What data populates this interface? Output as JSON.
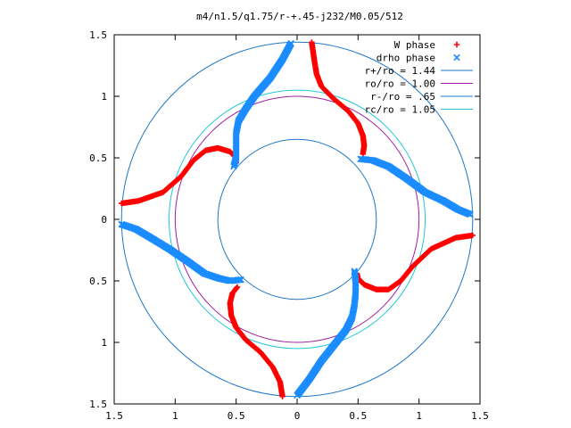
{
  "chart_data": {
    "type": "scatter",
    "title": "m4/n1.5/q1.75/r-+.45-j232/M0.05/512",
    "xlabel": "",
    "ylabel": "",
    "xlim": [
      -1.5,
      1.5
    ],
    "ylim": [
      -1.5,
      1.5
    ],
    "x_ticks": [
      {
        "value": -1.5,
        "label": "1.5"
      },
      {
        "value": -1.0,
        "label": "1"
      },
      {
        "value": -0.5,
        "label": "0.5"
      },
      {
        "value": 0.0,
        "label": "0"
      },
      {
        "value": 0.5,
        "label": "0.5"
      },
      {
        "value": 1.0,
        "label": "1"
      },
      {
        "value": 1.5,
        "label": "1.5"
      }
    ],
    "y_ticks": [
      {
        "value": 1.5,
        "label": "1.5"
      },
      {
        "value": 1.0,
        "label": "1"
      },
      {
        "value": 0.5,
        "label": "0.5"
      },
      {
        "value": 0.0,
        "label": "0"
      },
      {
        "value": -0.5,
        "label": "0.5"
      },
      {
        "value": -1.0,
        "label": "1"
      },
      {
        "value": -1.5,
        "label": "1.5"
      }
    ],
    "grid": false,
    "legend_position": "top-right",
    "circles": [
      {
        "name": "r+/ro = 1.44",
        "r": 1.44,
        "color": "#1f78c8"
      },
      {
        "name": "ro/ro = 1.00",
        "r": 1.0,
        "color": "#a020a0"
      },
      {
        "name": "r-/ro = .65",
        "r": 0.65,
        "color": "#1f78c8"
      },
      {
        "name": "rc/ro = 1.05",
        "r": 1.05,
        "color": "#20c8d8"
      }
    ],
    "series": [
      {
        "name": "W phase",
        "marker": "+",
        "color": "#ff0000",
        "curves": [
          [
            [
              0.12,
              1.44
            ],
            [
              0.14,
              1.3
            ],
            [
              0.16,
              1.18
            ],
            [
              0.2,
              1.08
            ],
            [
              0.3,
              0.98
            ],
            [
              0.42,
              0.88
            ],
            [
              0.5,
              0.78
            ],
            [
              0.54,
              0.68
            ],
            [
              0.55,
              0.6
            ],
            [
              0.54,
              0.53
            ]
          ],
          [
            [
              -1.44,
              0.13
            ],
            [
              -1.3,
              0.15
            ],
            [
              -1.1,
              0.22
            ],
            [
              -0.95,
              0.35
            ],
            [
              -0.85,
              0.48
            ],
            [
              -0.75,
              0.56
            ],
            [
              -0.65,
              0.58
            ],
            [
              -0.55,
              0.55
            ],
            [
              -0.5,
              0.5
            ],
            [
              -0.5,
              0.46
            ]
          ],
          [
            [
              -0.12,
              -1.44
            ],
            [
              -0.14,
              -1.32
            ],
            [
              -0.2,
              -1.2
            ],
            [
              -0.3,
              -1.08
            ],
            [
              -0.42,
              -0.98
            ],
            [
              -0.5,
              -0.88
            ],
            [
              -0.54,
              -0.78
            ],
            [
              -0.55,
              -0.68
            ],
            [
              -0.53,
              -0.6
            ],
            [
              -0.49,
              -0.55
            ]
          ],
          [
            [
              1.44,
              -0.13
            ],
            [
              1.3,
              -0.15
            ],
            [
              1.1,
              -0.24
            ],
            [
              0.95,
              -0.38
            ],
            [
              0.85,
              -0.5
            ],
            [
              0.75,
              -0.57
            ],
            [
              0.65,
              -0.57
            ],
            [
              0.55,
              -0.53
            ],
            [
              0.5,
              -0.48
            ],
            [
              0.49,
              -0.44
            ]
          ]
        ]
      },
      {
        "name": "drho phase",
        "marker": "x",
        "color": "#1a8cff",
        "curves": [
          [
            [
              -0.05,
              1.43
            ],
            [
              -0.12,
              1.3
            ],
            [
              -0.22,
              1.15
            ],
            [
              -0.35,
              1.0
            ],
            [
              -0.42,
              0.9
            ],
            [
              -0.48,
              0.8
            ],
            [
              -0.5,
              0.7
            ],
            [
              -0.5,
              0.6
            ],
            [
              -0.5,
              0.5
            ],
            [
              -0.52,
              0.43
            ]
          ],
          [
            [
              0.52,
              0.49
            ],
            [
              0.62,
              0.48
            ],
            [
              0.75,
              0.43
            ],
            [
              0.9,
              0.33
            ],
            [
              1.05,
              0.22
            ],
            [
              1.2,
              0.15
            ],
            [
              1.32,
              0.08
            ],
            [
              1.42,
              0.04
            ]
          ],
          [
            [
              -1.44,
              -0.04
            ],
            [
              -1.32,
              -0.08
            ],
            [
              -1.2,
              -0.15
            ],
            [
              -1.05,
              -0.24
            ],
            [
              -0.9,
              -0.34
            ],
            [
              -0.76,
              -0.44
            ],
            [
              -0.64,
              -0.48
            ],
            [
              -0.55,
              -0.5
            ],
            [
              -0.46,
              -0.49
            ]
          ],
          [
            [
              0.0,
              -1.43
            ],
            [
              0.1,
              -1.3
            ],
            [
              0.2,
              -1.15
            ],
            [
              0.32,
              -1.0
            ],
            [
              0.4,
              -0.9
            ],
            [
              0.45,
              -0.8
            ],
            [
              0.47,
              -0.7
            ],
            [
              0.48,
              -0.6
            ],
            [
              0.48,
              -0.5
            ],
            [
              0.47,
              -0.42
            ]
          ]
        ]
      }
    ]
  }
}
